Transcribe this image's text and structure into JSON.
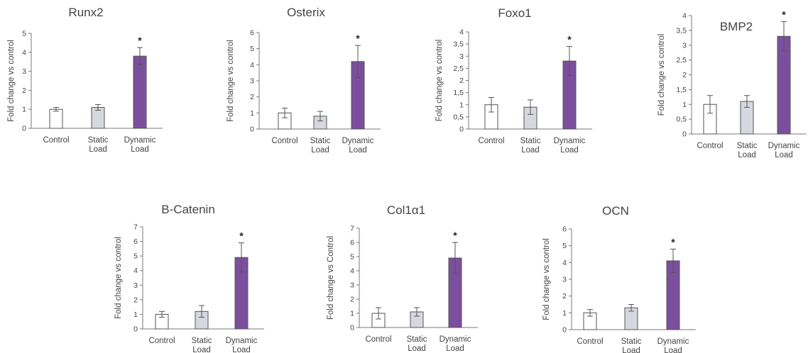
{
  "figure": {
    "xlabel_lines": {
      "Control": [
        "Control"
      ],
      "Static Load": [
        "Static",
        "Load"
      ],
      "Dynamic Load": [
        "Dynamic",
        "Load"
      ]
    },
    "significance_marker": "*",
    "bar_colors": [
      "#ffffff",
      "#d5d8de",
      "#7b4f9d"
    ],
    "bar_edge_color": "#555555",
    "axis_color": "#7a7a7a"
  },
  "chart_data": [
    {
      "type": "bar",
      "title": "Runx2",
      "ylabel": "Fold change vs control",
      "categories": [
        "Control",
        "Static Load",
        "Dynamic Load"
      ],
      "values": [
        1.0,
        1.1,
        3.8
      ],
      "errors": [
        0.1,
        0.15,
        0.45
      ],
      "ylim": [
        0,
        5
      ],
      "yticks": [
        "0",
        "1",
        "2",
        "3",
        "4",
        "5"
      ],
      "significant": [
        false,
        false,
        true
      ],
      "grid": false,
      "legend": "none"
    },
    {
      "type": "bar",
      "title": "Osterix",
      "ylabel": "Fold change vs control",
      "categories": [
        "Control",
        "Static Load",
        "Dynamic Load"
      ],
      "values": [
        1.0,
        0.8,
        4.2
      ],
      "errors": [
        0.3,
        0.3,
        1.0
      ],
      "ylim": [
        0,
        6
      ],
      "yticks": [
        "0",
        "1",
        "2",
        "3",
        "4",
        "5",
        "6"
      ],
      "significant": [
        false,
        false,
        true
      ],
      "grid": false,
      "legend": "none"
    },
    {
      "type": "bar",
      "title": "Foxo1",
      "ylabel": "Fold change vs control",
      "categories": [
        "Control",
        "Static Load",
        "Dynamic Load"
      ],
      "values": [
        1.0,
        0.9,
        2.8
      ],
      "errors": [
        0.3,
        0.3,
        0.6
      ],
      "ylim": [
        0,
        4
      ],
      "yticks": [
        "0",
        "0,5",
        "1",
        "1,5",
        "2",
        "2,5",
        "3",
        "3,5",
        "4"
      ],
      "significant": [
        false,
        false,
        true
      ],
      "grid": false,
      "legend": "none"
    },
    {
      "type": "bar",
      "title": "BMP2",
      "ylabel": "Fold change vs control",
      "categories": [
        "Control",
        "Static Load",
        "Dynamic Load"
      ],
      "values": [
        1.0,
        1.1,
        3.3
      ],
      "errors": [
        0.3,
        0.2,
        0.5
      ],
      "ylim": [
        0,
        4
      ],
      "yticks": [
        "0",
        "0,5",
        "1",
        "1,5",
        "2",
        "2,5",
        "3",
        "3,5",
        "4"
      ],
      "significant": [
        false,
        false,
        true
      ],
      "grid": false,
      "legend": "none"
    },
    {
      "type": "bar",
      "title": "B-Catenin",
      "ylabel": "Fold change vs control",
      "categories": [
        "Control",
        "Static Load",
        "Dynamic Load"
      ],
      "values": [
        1.0,
        1.2,
        4.9
      ],
      "errors": [
        0.2,
        0.4,
        1.0
      ],
      "ylim": [
        0,
        7
      ],
      "yticks": [
        "0",
        "1",
        "2",
        "3",
        "4",
        "5",
        "6",
        "7"
      ],
      "significant": [
        false,
        false,
        true
      ],
      "grid": false,
      "legend": "none"
    },
    {
      "type": "bar",
      "title": "Col1α1",
      "ylabel": "Fold change vs Control",
      "categories": [
        "Control",
        "Static Load",
        "Dynamic Load"
      ],
      "values": [
        1.0,
        1.1,
        4.9
      ],
      "errors": [
        0.4,
        0.3,
        1.1
      ],
      "ylim": [
        0,
        7
      ],
      "yticks": [
        "0",
        "1",
        "2",
        "3",
        "4",
        "5",
        "6",
        "7"
      ],
      "significant": [
        false,
        false,
        true
      ],
      "grid": false,
      "legend": "none"
    },
    {
      "type": "bar",
      "title": "OCN",
      "ylabel": "Fold change vs control",
      "categories": [
        "Control",
        "Static Load",
        "Dynamic Load"
      ],
      "values": [
        1.0,
        1.3,
        4.1
      ],
      "errors": [
        0.2,
        0.2,
        0.7
      ],
      "ylim": [
        0,
        6
      ],
      "yticks": [
        "0",
        "1",
        "2",
        "3",
        "4",
        "5",
        "6"
      ],
      "significant": [
        false,
        false,
        true
      ],
      "grid": false,
      "legend": "none"
    }
  ]
}
